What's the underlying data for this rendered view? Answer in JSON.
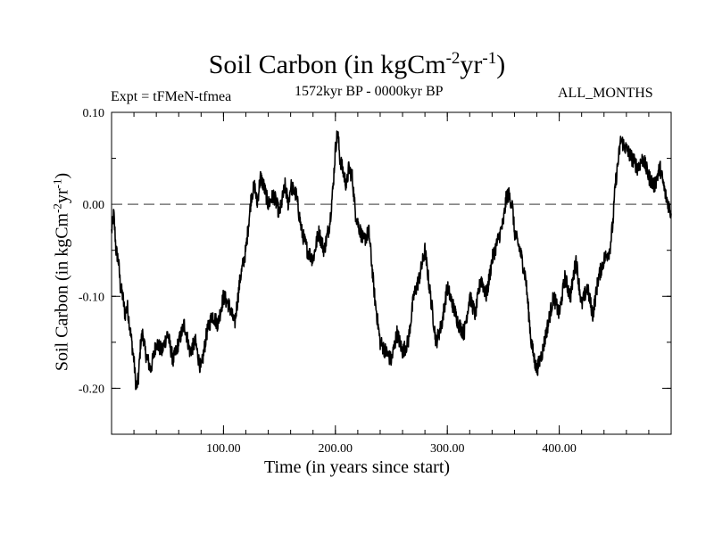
{
  "title": {
    "prefix": "Soil Carbon (in kgCm",
    "sup1": "-2",
    "mid": "yr",
    "sup2": "-1",
    "suffix": ")"
  },
  "expt_label": "Expt = tFMeN-tfmea",
  "period_label": "1572kyr BP - 0000kyr BP",
  "months_label": "ALL_MONTHS",
  "chart_data": {
    "type": "line",
    "title": "Soil Carbon (in kgCm-2yr-1)",
    "xlabel": "Time (in years since start)",
    "ylabel": "Soil Carbon (in kgCm-2yr-1)",
    "xlim": [
      0,
      500
    ],
    "ylim": [
      -0.25,
      0.1
    ],
    "x_ticks": [
      100,
      200,
      300,
      400
    ],
    "x_tick_labels": [
      "100.00",
      "200.00",
      "300.00",
      "400.00"
    ],
    "y_ticks": [
      -0.2,
      -0.1,
      0.0,
      0.1
    ],
    "y_tick_labels": [
      "-0.20",
      "-0.10",
      "0.00",
      "0.10"
    ],
    "reference_line": 0.0,
    "series": [
      {
        "name": "Soil Carbon",
        "x": [
          0,
          2,
          4,
          6,
          8,
          10,
          12,
          14,
          16,
          18,
          20,
          22,
          24,
          26,
          28,
          30,
          35,
          40,
          45,
          50,
          55,
          60,
          65,
          70,
          75,
          78,
          80,
          85,
          90,
          95,
          100,
          105,
          110,
          115,
          120,
          125,
          128,
          130,
          133,
          136,
          140,
          145,
          150,
          155,
          158,
          160,
          165,
          170,
          175,
          180,
          185,
          190,
          195,
          198,
          200,
          202,
          204,
          206,
          208,
          210,
          212,
          215,
          218,
          220,
          225,
          230,
          235,
          240,
          245,
          250,
          255,
          260,
          265,
          270,
          275,
          280,
          285,
          290,
          295,
          300,
          305,
          310,
          315,
          320,
          325,
          330,
          335,
          340,
          345,
          350,
          353,
          355,
          358,
          360,
          365,
          370,
          375,
          378,
          380,
          385,
          390,
          395,
          400,
          405,
          410,
          415,
          420,
          425,
          430,
          435,
          440,
          445,
          448,
          450,
          455,
          460,
          465,
          470,
          475,
          480,
          485,
          490,
          495,
          500
        ],
        "y": [
          -0.03,
          -0.01,
          -0.05,
          -0.06,
          -0.09,
          -0.1,
          -0.12,
          -0.11,
          -0.13,
          -0.15,
          -0.17,
          -0.2,
          -0.19,
          -0.15,
          -0.14,
          -0.16,
          -0.18,
          -0.15,
          -0.16,
          -0.14,
          -0.17,
          -0.15,
          -0.13,
          -0.16,
          -0.15,
          -0.17,
          -0.18,
          -0.14,
          -0.12,
          -0.13,
          -0.1,
          -0.11,
          -0.13,
          -0.08,
          -0.05,
          0.01,
          0.02,
          0.0,
          0.03,
          0.02,
          0.0,
          0.01,
          -0.01,
          0.02,
          0.0,
          0.02,
          0.01,
          -0.03,
          -0.05,
          -0.06,
          -0.03,
          -0.05,
          -0.02,
          0.02,
          0.06,
          0.08,
          0.05,
          0.04,
          0.03,
          0.02,
          0.04,
          0.03,
          -0.01,
          -0.02,
          -0.04,
          -0.03,
          -0.1,
          -0.15,
          -0.16,
          -0.17,
          -0.14,
          -0.16,
          -0.15,
          -0.1,
          -0.08,
          -0.05,
          -0.1,
          -0.15,
          -0.13,
          -0.09,
          -0.11,
          -0.13,
          -0.14,
          -0.1,
          -0.12,
          -0.08,
          -0.1,
          -0.06,
          -0.04,
          -0.02,
          0.01,
          0.01,
          0.0,
          -0.03,
          -0.05,
          -0.08,
          -0.15,
          -0.17,
          -0.18,
          -0.16,
          -0.13,
          -0.1,
          -0.12,
          -0.08,
          -0.1,
          -0.06,
          -0.11,
          -0.09,
          -0.12,
          -0.08,
          -0.06,
          -0.05,
          -0.02,
          0.02,
          0.07,
          0.06,
          0.05,
          0.04,
          0.05,
          0.03,
          0.02,
          0.04,
          0.01,
          -0.01
        ]
      }
    ]
  }
}
